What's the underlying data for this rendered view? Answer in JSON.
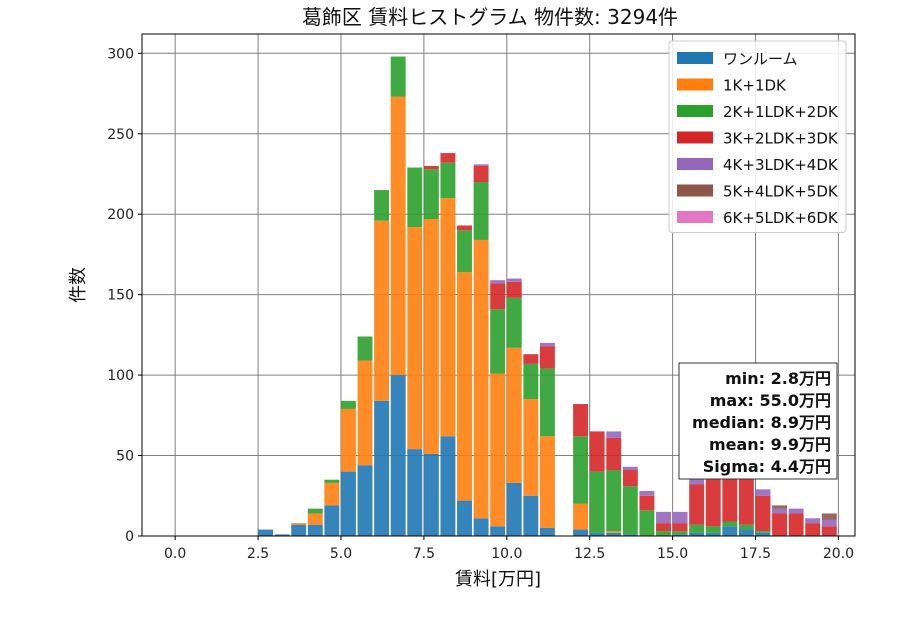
{
  "chart_data": {
    "type": "bar",
    "stacked": true,
    "title": "葛飾区 賃料ヒストグラム 物件数: 3294件",
    "xlabel": "賃料[万円]",
    "ylabel": "件数",
    "xlim": [
      -1,
      20.5
    ],
    "ylim": [
      0,
      312
    ],
    "bin_width": 0.5,
    "xticks": [
      0.0,
      2.5,
      5.0,
      7.5,
      10.0,
      12.5,
      15.0,
      17.5,
      20.0
    ],
    "xtick_labels": [
      "0.0",
      "2.5",
      "5.0",
      "7.5",
      "10.0",
      "12.5",
      "15.0",
      "17.5",
      "20.0"
    ],
    "yticks": [
      0,
      50,
      100,
      150,
      200,
      250,
      300
    ],
    "ytick_labels": [
      "0",
      "50",
      "100",
      "150",
      "200",
      "250",
      "300"
    ],
    "grid": true,
    "legend_position": "top-right",
    "bins": [
      2.0,
      2.5,
      3.0,
      3.5,
      4.0,
      4.5,
      5.0,
      5.5,
      6.0,
      6.5,
      7.0,
      7.5,
      8.0,
      8.5,
      9.0,
      9.5,
      10.0,
      10.5,
      11.0,
      11.5,
      12.0,
      12.5,
      13.0,
      13.5,
      14.0,
      14.5,
      15.0,
      15.5,
      16.0,
      16.5,
      17.0,
      17.5,
      18.0,
      18.5,
      19.0,
      19.5
    ],
    "series": [
      {
        "name": "ワンルーム",
        "color": "#1f77b4",
        "values": [
          0,
          4,
          1,
          7,
          7,
          19,
          40,
          44,
          84,
          100,
          54,
          51,
          62,
          22,
          11,
          6,
          33,
          25,
          5,
          0,
          4,
          2,
          2,
          1,
          0,
          0,
          1,
          2,
          2,
          6,
          4,
          2,
          0,
          0,
          0,
          0
        ]
      },
      {
        "name": "1K+1DK",
        "color": "#ff7f0e",
        "values": [
          0,
          0,
          0,
          1,
          7,
          14,
          39,
          65,
          112,
          173,
          138,
          146,
          148,
          142,
          173,
          95,
          84,
          60,
          57,
          0,
          16,
          0,
          1,
          0,
          0,
          0,
          0,
          0,
          0,
          0,
          0,
          0,
          0,
          0,
          0,
          0
        ]
      },
      {
        "name": "2K+1LDK+2DK",
        "color": "#2ca02c",
        "values": [
          0,
          0,
          0,
          0,
          3,
          2,
          5,
          15,
          19,
          25,
          37,
          31,
          22,
          26,
          36,
          40,
          31,
          22,
          42,
          0,
          42,
          38,
          38,
          30,
          16,
          3,
          2,
          5,
          4,
          3,
          3,
          1,
          0,
          0,
          0,
          0
        ]
      },
      {
        "name": "3K+2LDK+3DK",
        "color": "#d62728",
        "values": [
          0,
          0,
          0,
          0,
          0,
          0,
          0,
          0,
          0,
          0,
          0,
          2,
          6,
          3,
          10,
          16,
          10,
          6,
          14,
          0,
          20,
          25,
          20,
          10,
          9,
          5,
          5,
          25,
          30,
          35,
          35,
          22,
          14,
          14,
          8,
          6
        ]
      },
      {
        "name": "4K+3LDK+4DK",
        "color": "#9467bd",
        "values": [
          0,
          0,
          0,
          0,
          0,
          0,
          0,
          0,
          0,
          0,
          0,
          0,
          0,
          0,
          1,
          2,
          2,
          0,
          2,
          0,
          0,
          0,
          4,
          2,
          3,
          7,
          7,
          4,
          4,
          4,
          4,
          4,
          3,
          3,
          3,
          4
        ]
      },
      {
        "name": "5K+4LDK+5DK",
        "color": "#8c564b",
        "values": [
          0,
          0,
          0,
          0,
          0,
          0,
          0,
          0,
          0,
          0,
          0,
          0,
          0,
          0,
          0,
          0,
          0,
          0,
          0,
          0,
          0,
          0,
          0,
          0,
          0,
          0,
          0,
          0,
          0,
          0,
          0,
          0,
          2,
          0,
          0,
          4
        ]
      },
      {
        "name": "6K+5LDK+6DK",
        "color": "#e377c2",
        "values": [
          0,
          0,
          0,
          0,
          0,
          0,
          0,
          0,
          0,
          0,
          0,
          0,
          0,
          0,
          0,
          0,
          0,
          0,
          0,
          0,
          0,
          0,
          0,
          0,
          0,
          0,
          0,
          0,
          0,
          0,
          0,
          0,
          0,
          0,
          0,
          0
        ]
      }
    ],
    "stats_box": [
      "min: 2.8万円",
      "max: 55.0万円",
      "median: 8.9万円",
      "mean: 9.9万円",
      "Sigma: 4.4万円"
    ]
  }
}
